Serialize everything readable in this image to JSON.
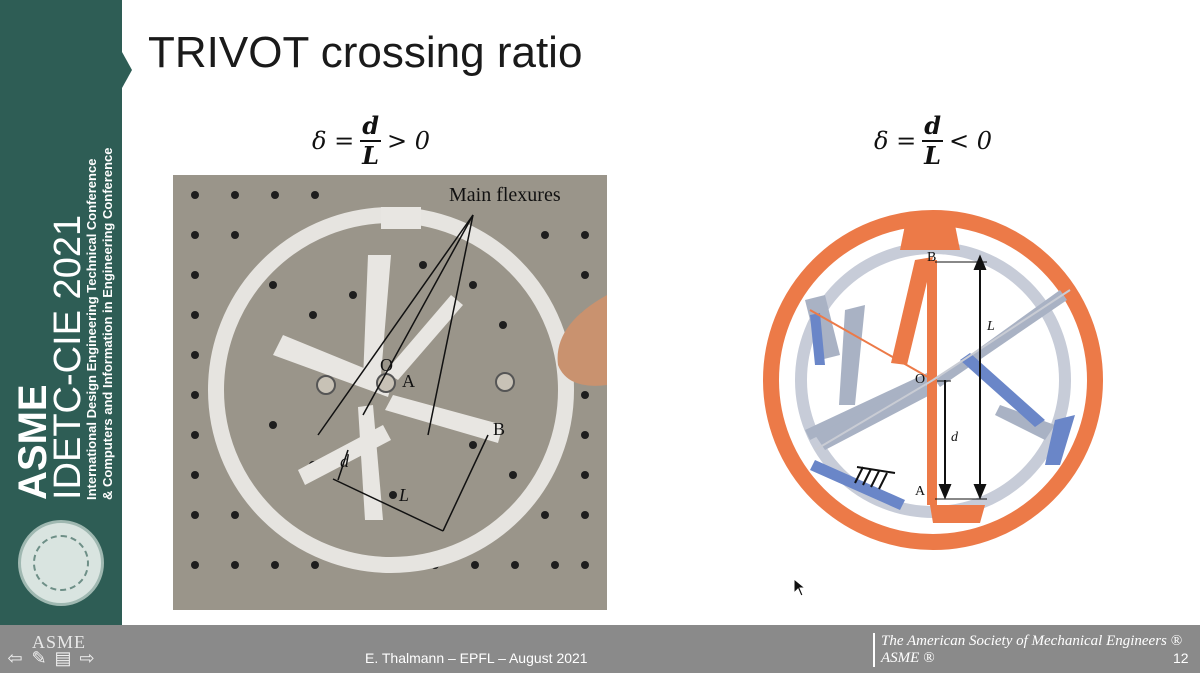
{
  "slide": {
    "title": "TRIVOT crossing ratio",
    "formula_left": {
      "lhs": "δ =",
      "numerator": "d",
      "denominator": "L",
      "rhs": "> 0"
    },
    "formula_right": {
      "lhs": "δ =",
      "numerator": "d",
      "denominator": "L",
      "rhs": "< 0"
    }
  },
  "sidebar": {
    "brand": "ASME",
    "conference": "IDETC-CIE 2021",
    "line1": "International Design Engineering Technical Conference",
    "line2": "& Computers and Information in Engineering Conference"
  },
  "photo_labels": {
    "main_flexures": "Main flexures",
    "O": "O",
    "A": "A",
    "B": "B",
    "d": "d",
    "L": "L"
  },
  "diagram_labels": {
    "B": "B",
    "A": "A",
    "O": "O",
    "L": "L",
    "d": "d"
  },
  "footer": {
    "asme_left": "ASME",
    "center": "E. Thalmann – EPFL – August 2021",
    "society_line1": "The American Society of Mechanical Engineers ®",
    "society_line2": "ASME ®",
    "page_number": "12"
  },
  "colors": {
    "sidebar": "#2e5d55",
    "footer": "#8a8a8a",
    "diagram_orange": "#ec7a48",
    "diagram_gray": "#a9b2c4",
    "diagram_blue": "#6a86c8"
  },
  "icons": [
    "prev-arrow-icon",
    "pen-icon",
    "slides-icon",
    "next-arrow-icon",
    "mouse-cursor-icon"
  ]
}
